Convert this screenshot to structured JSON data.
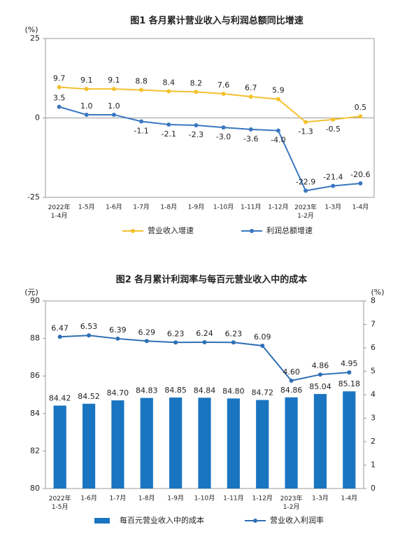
{
  "chart_data": [
    {
      "type": "line",
      "title": "图1  各月累计营业收入与利润总额同比增速",
      "ylabel": "(%)",
      "categories": [
        "2022年\n1-4月",
        "1-5月",
        "1-6月",
        "1-7月",
        "1-8月",
        "1-9月",
        "1-10月",
        "1-11月",
        "1-12月",
        "2023年\n1-2月",
        "1-3月",
        "1-4月"
      ],
      "ylim": [
        -25,
        25
      ],
      "yticks": [
        -25,
        0,
        25
      ],
      "series": [
        {
          "name": "营业收入增速",
          "color": "#f2c12e",
          "type": "line",
          "values": [
            9.7,
            9.1,
            9.1,
            8.8,
            8.4,
            8.2,
            7.6,
            6.7,
            5.9,
            -1.3,
            -0.5,
            0.5
          ],
          "value_labels": [
            "9.7",
            "9.1",
            "9.1",
            "8.8",
            "8.4",
            "8.2",
            "7.6",
            "6.7",
            "5.9",
            "-1.3",
            "-0.5",
            "0.5"
          ]
        },
        {
          "name": "利润总额增速",
          "color": "#3a78c0",
          "type": "line",
          "values": [
            3.5,
            1.0,
            1.0,
            -1.1,
            -2.1,
            -2.3,
            -3.0,
            -3.6,
            -4.0,
            -22.9,
            -21.4,
            -20.6
          ],
          "value_labels": [
            "3.5",
            "1.0",
            "1.0",
            "-1.1",
            "-2.1",
            "-2.3",
            "-3.0",
            "-3.6",
            "-4.0",
            "-22.9",
            "-21.4",
            "-20.6"
          ]
        }
      ]
    },
    {
      "type": "bar",
      "title": "图2  各月累计利润率与每百元营业收入中的成本",
      "ylabel": "(元)",
      "y2label": "(%)",
      "categories": [
        "2022年\n1-5月",
        "1-6月",
        "1-7月",
        "1-8月",
        "1-9月",
        "1-10月",
        "1-11月",
        "1-12月",
        "2023年\n1-2月",
        "1-3月",
        "1-4月"
      ],
      "ylim": [
        80,
        90
      ],
      "yticks": [
        80,
        82,
        84,
        86,
        88,
        90
      ],
      "y2lim": [
        0,
        8
      ],
      "y2ticks": [
        0,
        1,
        2,
        3,
        4,
        5,
        6,
        7,
        8
      ],
      "series": [
        {
          "name": "每百元营业收入中的成本",
          "color": "#1a75c1",
          "type": "bar",
          "values": [
            84.42,
            84.52,
            84.7,
            84.83,
            84.85,
            84.84,
            84.8,
            84.72,
            84.86,
            85.04,
            85.18
          ],
          "value_labels": [
            "84.42",
            "84.52",
            "84.70",
            "84.83",
            "84.85",
            "84.84",
            "84.80",
            "84.72",
            "84.86",
            "85.04",
            "85.18"
          ]
        },
        {
          "name": "营业收入利润率",
          "color": "#2f6fb5",
          "type": "line",
          "axis": "y2",
          "values": [
            6.47,
            6.53,
            6.39,
            6.29,
            6.23,
            6.24,
            6.23,
            6.09,
            4.6,
            4.86,
            4.95
          ],
          "value_labels": [
            "6.47",
            "6.53",
            "6.39",
            "6.29",
            "6.23",
            "6.24",
            "6.23",
            "6.09",
            "4.60",
            "4.86",
            "4.95"
          ]
        }
      ]
    }
  ]
}
